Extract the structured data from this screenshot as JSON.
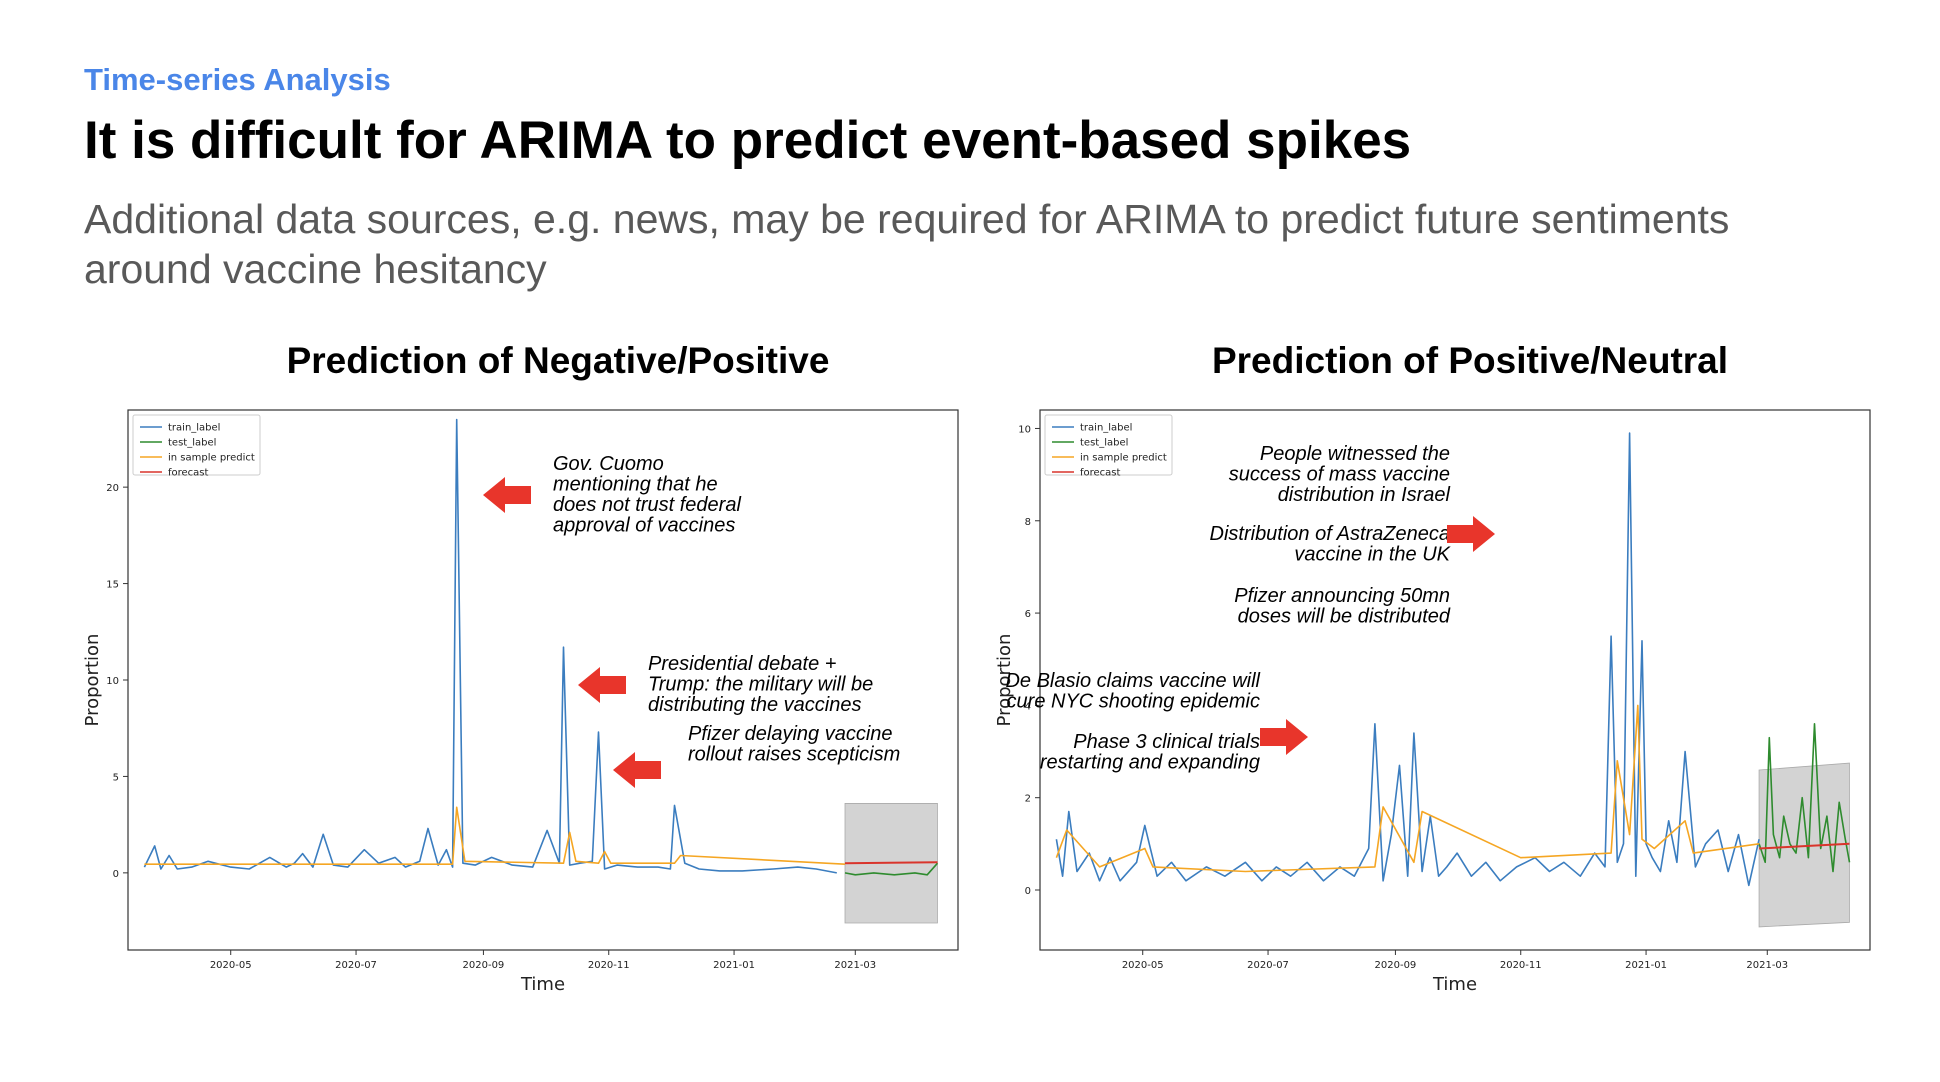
{
  "header": {
    "eyebrow": "Time-series Analysis",
    "title": "It is difficult for ARIMA to predict event-based spikes",
    "subtitle": "Additional data sources, e.g. news, may be required for ARIMA to predict future sentiments around vaccine hesitancy"
  },
  "colors": {
    "train": "#3b7dbf",
    "test": "#2e8b2e",
    "in_sample": "#f5a623",
    "forecast": "#d9342b",
    "arrow": "#e8352b",
    "eyebrow": "#4a86e8"
  },
  "chart_data": [
    {
      "type": "line",
      "title": "Prediction of Negative/Positive",
      "xlabel": "Time",
      "ylabel": "Proportion",
      "x_ticks": [
        "2020-05",
        "2020-07",
        "2020-09",
        "2020-11",
        "2021-01",
        "2021-03"
      ],
      "y_ticks": [
        0,
        5,
        10,
        15,
        20
      ],
      "xlim": [
        "2020-03-12",
        "2021-04-20"
      ],
      "ylim": [
        -4,
        24
      ],
      "legend_position": "top-left",
      "legend": [
        "train_label",
        "test_label",
        "in sample predict",
        "forecast"
      ],
      "series": [
        {
          "name": "train_label",
          "x": [
            "2020-03-20",
            "2020-03-25",
            "2020-03-28",
            "2020-04-01",
            "2020-04-05",
            "2020-04-12",
            "2020-04-20",
            "2020-05-01",
            "2020-05-10",
            "2020-05-20",
            "2020-05-28",
            "2020-06-01",
            "2020-06-05",
            "2020-06-10",
            "2020-06-15",
            "2020-06-20",
            "2020-06-27",
            "2020-07-05",
            "2020-07-12",
            "2020-07-20",
            "2020-07-25",
            "2020-08-01",
            "2020-08-05",
            "2020-08-10",
            "2020-08-14",
            "2020-08-17",
            "2020-08-19",
            "2020-08-22",
            "2020-08-28",
            "2020-09-05",
            "2020-09-15",
            "2020-09-25",
            "2020-10-02",
            "2020-10-08",
            "2020-10-10",
            "2020-10-13",
            "2020-10-18",
            "2020-10-24",
            "2020-10-27",
            "2020-10-30",
            "2020-11-05",
            "2020-11-15",
            "2020-11-25",
            "2020-12-01",
            "2020-12-03",
            "2020-12-08",
            "2020-12-15",
            "2020-12-25",
            "2021-01-05",
            "2021-01-20",
            "2021-02-01",
            "2021-02-10",
            "2021-02-20"
          ],
          "values": [
            0.3,
            1.4,
            0.2,
            0.9,
            0.2,
            0.3,
            0.6,
            0.3,
            0.2,
            0.8,
            0.3,
            0.5,
            1.0,
            0.3,
            2.0,
            0.4,
            0.3,
            1.2,
            0.5,
            0.8,
            0.3,
            0.6,
            2.3,
            0.4,
            1.2,
            0.3,
            23.5,
            0.5,
            0.4,
            0.8,
            0.4,
            0.3,
            2.2,
            0.5,
            11.7,
            0.4,
            0.5,
            0.6,
            7.3,
            0.2,
            0.4,
            0.3,
            0.3,
            0.2,
            3.5,
            0.5,
            0.2,
            0.1,
            0.1,
            0.2,
            0.3,
            0.2,
            0.0
          ]
        },
        {
          "name": "test_label",
          "x": [
            "2021-02-24",
            "2021-03-01",
            "2021-03-10",
            "2021-03-20",
            "2021-03-30",
            "2021-04-05",
            "2021-04-10"
          ],
          "values": [
            0.0,
            -0.1,
            0.0,
            -0.1,
            0.0,
            -0.1,
            0.5
          ]
        },
        {
          "name": "in sample predict",
          "x": [
            "2020-03-20",
            "2020-08-17",
            "2020-08-19",
            "2020-08-23",
            "2020-10-10",
            "2020-10-13",
            "2020-10-16",
            "2020-10-27",
            "2020-10-30",
            "2020-11-02",
            "2020-12-03",
            "2020-12-06",
            "2021-02-24"
          ],
          "values": [
            0.45,
            0.45,
            3.4,
            0.6,
            0.5,
            2.1,
            0.6,
            0.5,
            1.1,
            0.5,
            0.5,
            0.9,
            0.45
          ]
        },
        {
          "name": "forecast",
          "x": [
            "2021-02-24",
            "2021-04-10"
          ],
          "values": [
            0.5,
            0.55
          ]
        }
      ],
      "confidence_band": {
        "x": [
          "2021-02-24",
          "2021-04-10"
        ],
        "upper": [
          3.6,
          3.6
        ],
        "lower": [
          -2.6,
          -2.6
        ]
      },
      "annotations": [
        {
          "lines": [
            "Gov. Cuomo",
            "mentioning that he",
            "does not trust federal",
            "approval of vaccines"
          ]
        },
        {
          "lines": [
            "Presidential debate +",
            "Trump: the military will be",
            "distributing the vaccines"
          ]
        },
        {
          "lines": [
            "Pfizer delaying vaccine",
            "rollout raises scepticism"
          ]
        }
      ]
    },
    {
      "type": "line",
      "title": "Prediction of Positive/Neutral",
      "xlabel": "Time",
      "ylabel": "Proportion",
      "x_ticks": [
        "2020-05",
        "2020-07",
        "2020-09",
        "2020-11",
        "2021-01",
        "2021-03"
      ],
      "y_ticks": [
        0,
        2,
        4,
        6,
        8,
        10
      ],
      "xlim": [
        "2020-03-12",
        "2021-04-20"
      ],
      "ylim": [
        -1.3,
        10.4
      ],
      "legend_position": "top-left",
      "legend": [
        "train_label",
        "test_label",
        "in sample predict",
        "forecast"
      ],
      "series": [
        {
          "name": "train_label",
          "x": [
            "2020-03-20",
            "2020-03-23",
            "2020-03-26",
            "2020-03-30",
            "2020-04-05",
            "2020-04-10",
            "2020-04-15",
            "2020-04-20",
            "2020-04-28",
            "2020-05-02",
            "2020-05-08",
            "2020-05-15",
            "2020-05-22",
            "2020-06-01",
            "2020-06-10",
            "2020-06-20",
            "2020-06-28",
            "2020-07-05",
            "2020-07-12",
            "2020-07-20",
            "2020-07-28",
            "2020-08-05",
            "2020-08-12",
            "2020-08-19",
            "2020-08-22",
            "2020-08-26",
            "2020-08-30",
            "2020-09-03",
            "2020-09-07",
            "2020-09-10",
            "2020-09-14",
            "2020-09-18",
            "2020-09-22",
            "2020-09-26",
            "2020-10-01",
            "2020-10-08",
            "2020-10-15",
            "2020-10-22",
            "2020-10-30",
            "2020-11-08",
            "2020-11-15",
            "2020-11-22",
            "2020-11-30",
            "2020-12-07",
            "2020-12-12",
            "2020-12-15",
            "2020-12-18",
            "2020-12-21",
            "2020-12-24",
            "2020-12-27",
            "2020-12-30",
            "2021-01-01",
            "2021-01-04",
            "2021-01-08",
            "2021-01-12",
            "2021-01-16",
            "2021-01-20",
            "2021-01-25",
            "2021-01-30",
            "2021-02-05",
            "2021-02-10",
            "2021-02-15",
            "2021-02-20",
            "2021-02-25"
          ],
          "values": [
            1.1,
            0.3,
            1.7,
            0.4,
            0.8,
            0.2,
            0.7,
            0.2,
            0.6,
            1.4,
            0.3,
            0.6,
            0.2,
            0.5,
            0.3,
            0.6,
            0.2,
            0.5,
            0.3,
            0.6,
            0.2,
            0.5,
            0.3,
            0.9,
            3.6,
            0.2,
            1.2,
            2.7,
            0.3,
            3.4,
            0.4,
            1.6,
            0.3,
            0.5,
            0.8,
            0.3,
            0.6,
            0.2,
            0.5,
            0.7,
            0.4,
            0.6,
            0.3,
            0.8,
            0.5,
            5.5,
            0.6,
            1.0,
            9.9,
            0.3,
            5.4,
            1.0,
            0.7,
            0.4,
            1.5,
            0.6,
            3.0,
            0.5,
            1.0,
            1.3,
            0.4,
            1.2,
            0.1,
            1.1
          ]
        },
        {
          "name": "test_label",
          "x": [
            "2021-02-25",
            "2021-02-28",
            "2021-03-02",
            "2021-03-04",
            "2021-03-07",
            "2021-03-09",
            "2021-03-12",
            "2021-03-15",
            "2021-03-18",
            "2021-03-21",
            "2021-03-24",
            "2021-03-27",
            "2021-03-30",
            "2021-04-02",
            "2021-04-05",
            "2021-04-08",
            "2021-04-10"
          ],
          "values": [
            1.0,
            0.6,
            3.3,
            1.2,
            0.7,
            1.6,
            1.0,
            0.8,
            2.0,
            0.7,
            3.6,
            0.9,
            1.6,
            0.4,
            1.9,
            1.1,
            0.6
          ]
        },
        {
          "name": "in sample predict",
          "x": [
            "2020-03-20",
            "2020-03-25",
            "2020-04-10",
            "2020-05-02",
            "2020-05-06",
            "2020-06-20",
            "2020-08-22",
            "2020-08-26",
            "2020-09-10",
            "2020-09-14",
            "2020-11-01",
            "2020-12-15",
            "2020-12-18",
            "2020-12-24",
            "2020-12-28",
            "2020-12-30",
            "2021-01-05",
            "2021-01-20",
            "2021-01-24",
            "2021-02-25"
          ],
          "values": [
            0.7,
            1.3,
            0.5,
            0.9,
            0.5,
            0.4,
            0.5,
            1.8,
            0.6,
            1.7,
            0.7,
            0.8,
            2.8,
            1.2,
            4.0,
            1.1,
            0.9,
            1.5,
            0.8,
            1.0
          ]
        },
        {
          "name": "forecast",
          "x": [
            "2021-02-25",
            "2021-04-10"
          ],
          "values": [
            0.9,
            1.0
          ]
        }
      ],
      "confidence_band": {
        "x": [
          "2021-02-25",
          "2021-04-10"
        ],
        "upper": [
          2.6,
          2.75
        ],
        "lower": [
          -0.8,
          -0.7
        ]
      },
      "annotations": [
        {
          "lines": [
            "People witnessed the",
            "success of mass vaccine",
            "distribution in Israel"
          ]
        },
        {
          "lines": [
            "Distribution of AstraZeneca",
            "vaccine in the UK"
          ]
        },
        {
          "lines": [
            "Pfizer announcing 50mn",
            "doses will be distributed"
          ]
        },
        {
          "lines": [
            "De Blasio claims vaccine will",
            "cure NYC shooting epidemic"
          ]
        },
        {
          "lines": [
            "Phase 3 clinical trials",
            "restarting and expanding"
          ]
        }
      ]
    }
  ]
}
